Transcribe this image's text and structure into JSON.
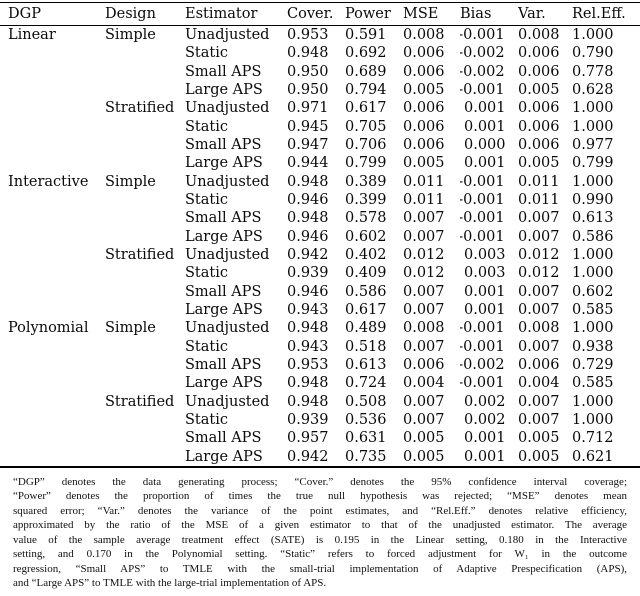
{
  "table": {
    "columns": [
      "DGP",
      "Design",
      "Estimator",
      "Cover.",
      "Power",
      "MSE",
      "Bias",
      "Var.",
      "Rel.Eff."
    ],
    "rows": [
      [
        "Linear",
        "Simple",
        "Unadjusted",
        "0.953",
        "0.591",
        "0.008",
        "-0.001",
        "0.008",
        "1.000"
      ],
      [
        "",
        "",
        "Static",
        "0.948",
        "0.692",
        "0.006",
        "-0.002",
        "0.006",
        "0.790"
      ],
      [
        "",
        "",
        "Small APS",
        "0.950",
        "0.689",
        "0.006",
        "-0.002",
        "0.006",
        "0.778"
      ],
      [
        "",
        "",
        "Large APS",
        "0.950",
        "0.794",
        "0.005",
        "-0.001",
        "0.005",
        "0.628"
      ],
      [
        "",
        "Stratified",
        "Unadjusted",
        "0.971",
        "0.617",
        "0.006",
        "0.001",
        "0.006",
        "1.000"
      ],
      [
        "",
        "",
        "Static",
        "0.945",
        "0.705",
        "0.006",
        "0.001",
        "0.006",
        "1.000"
      ],
      [
        "",
        "",
        "Small APS",
        "0.947",
        "0.706",
        "0.006",
        "0.000",
        "0.006",
        "0.977"
      ],
      [
        "",
        "",
        "Large APS",
        "0.944",
        "0.799",
        "0.005",
        "0.001",
        "0.005",
        "0.799"
      ],
      [
        "Interactive",
        "Simple",
        "Unadjusted",
        "0.948",
        "0.389",
        "0.011",
        "-0.001",
        "0.011",
        "1.000"
      ],
      [
        "",
        "",
        "Static",
        "0.946",
        "0.399",
        "0.011",
        "-0.001",
        "0.011",
        "0.990"
      ],
      [
        "",
        "",
        "Small APS",
        "0.948",
        "0.578",
        "0.007",
        "-0.001",
        "0.007",
        "0.613"
      ],
      [
        "",
        "",
        "Large APS",
        "0.946",
        "0.602",
        "0.007",
        "-0.001",
        "0.007",
        "0.586"
      ],
      [
        "",
        "Stratified",
        "Unadjusted",
        "0.942",
        "0.402",
        "0.012",
        "0.003",
        "0.012",
        "1.000"
      ],
      [
        "",
        "",
        "Static",
        "0.939",
        "0.409",
        "0.012",
        "0.003",
        "0.012",
        "1.000"
      ],
      [
        "",
        "",
        "Small APS",
        "0.946",
        "0.586",
        "0.007",
        "0.001",
        "0.007",
        "0.602"
      ],
      [
        "",
        "",
        "Large APS",
        "0.943",
        "0.617",
        "0.007",
        "0.001",
        "0.007",
        "0.585"
      ],
      [
        "Polynomial",
        "Simple",
        "Unadjusted",
        "0.948",
        "0.489",
        "0.008",
        "-0.001",
        "0.008",
        "1.000"
      ],
      [
        "",
        "",
        "Static",
        "0.943",
        "0.518",
        "0.007",
        "-0.001",
        "0.007",
        "0.938"
      ],
      [
        "",
        "",
        "Small APS",
        "0.953",
        "0.613",
        "0.006",
        "-0.002",
        "0.006",
        "0.729"
      ],
      [
        "",
        "",
        "Large APS",
        "0.948",
        "0.724",
        "0.004",
        "-0.001",
        "0.004",
        "0.585"
      ],
      [
        "",
        "Stratified",
        "Unadjusted",
        "0.948",
        "0.508",
        "0.007",
        "0.002",
        "0.007",
        "1.000"
      ],
      [
        "",
        "",
        "Static",
        "0.939",
        "0.536",
        "0.007",
        "0.002",
        "0.007",
        "1.000"
      ],
      [
        "",
        "",
        "Small APS",
        "0.957",
        "0.631",
        "0.005",
        "0.001",
        "0.005",
        "0.712"
      ],
      [
        "",
        "",
        "Large APS",
        "0.942",
        "0.735",
        "0.005",
        "0.001",
        "0.005",
        "0.621"
      ]
    ]
  },
  "footnote": {
    "lines": [
      "“DGP” denotes the data generating process; “Cover.” denotes the 95% confidence interval coverage;",
      "“Power” denotes the proportion of times the true null hypothesis was rejected; “MSE” denotes mean",
      "squared error; “Var.” denotes the variance of the point estimates, and “Rel.Eff.” denotes relative efficiency,",
      "approximated by the ratio of the MSE of a given estimator to that of the unadjusted estimator. The average",
      "value of the sample average treatment effect (SATE) is 0.195 in the Linear setting, 0.180 in the Interactive",
      "setting, and 0.170 in the Polynomial setting. “Static” refers to forced adjustment for W₁ in the outcome",
      "regression, “Small APS” to TMLE with the small-trial implementation of Adaptive Prespecification (APS),",
      "and “Large APS” to TMLE with the large-trial implementation of APS."
    ]
  }
}
